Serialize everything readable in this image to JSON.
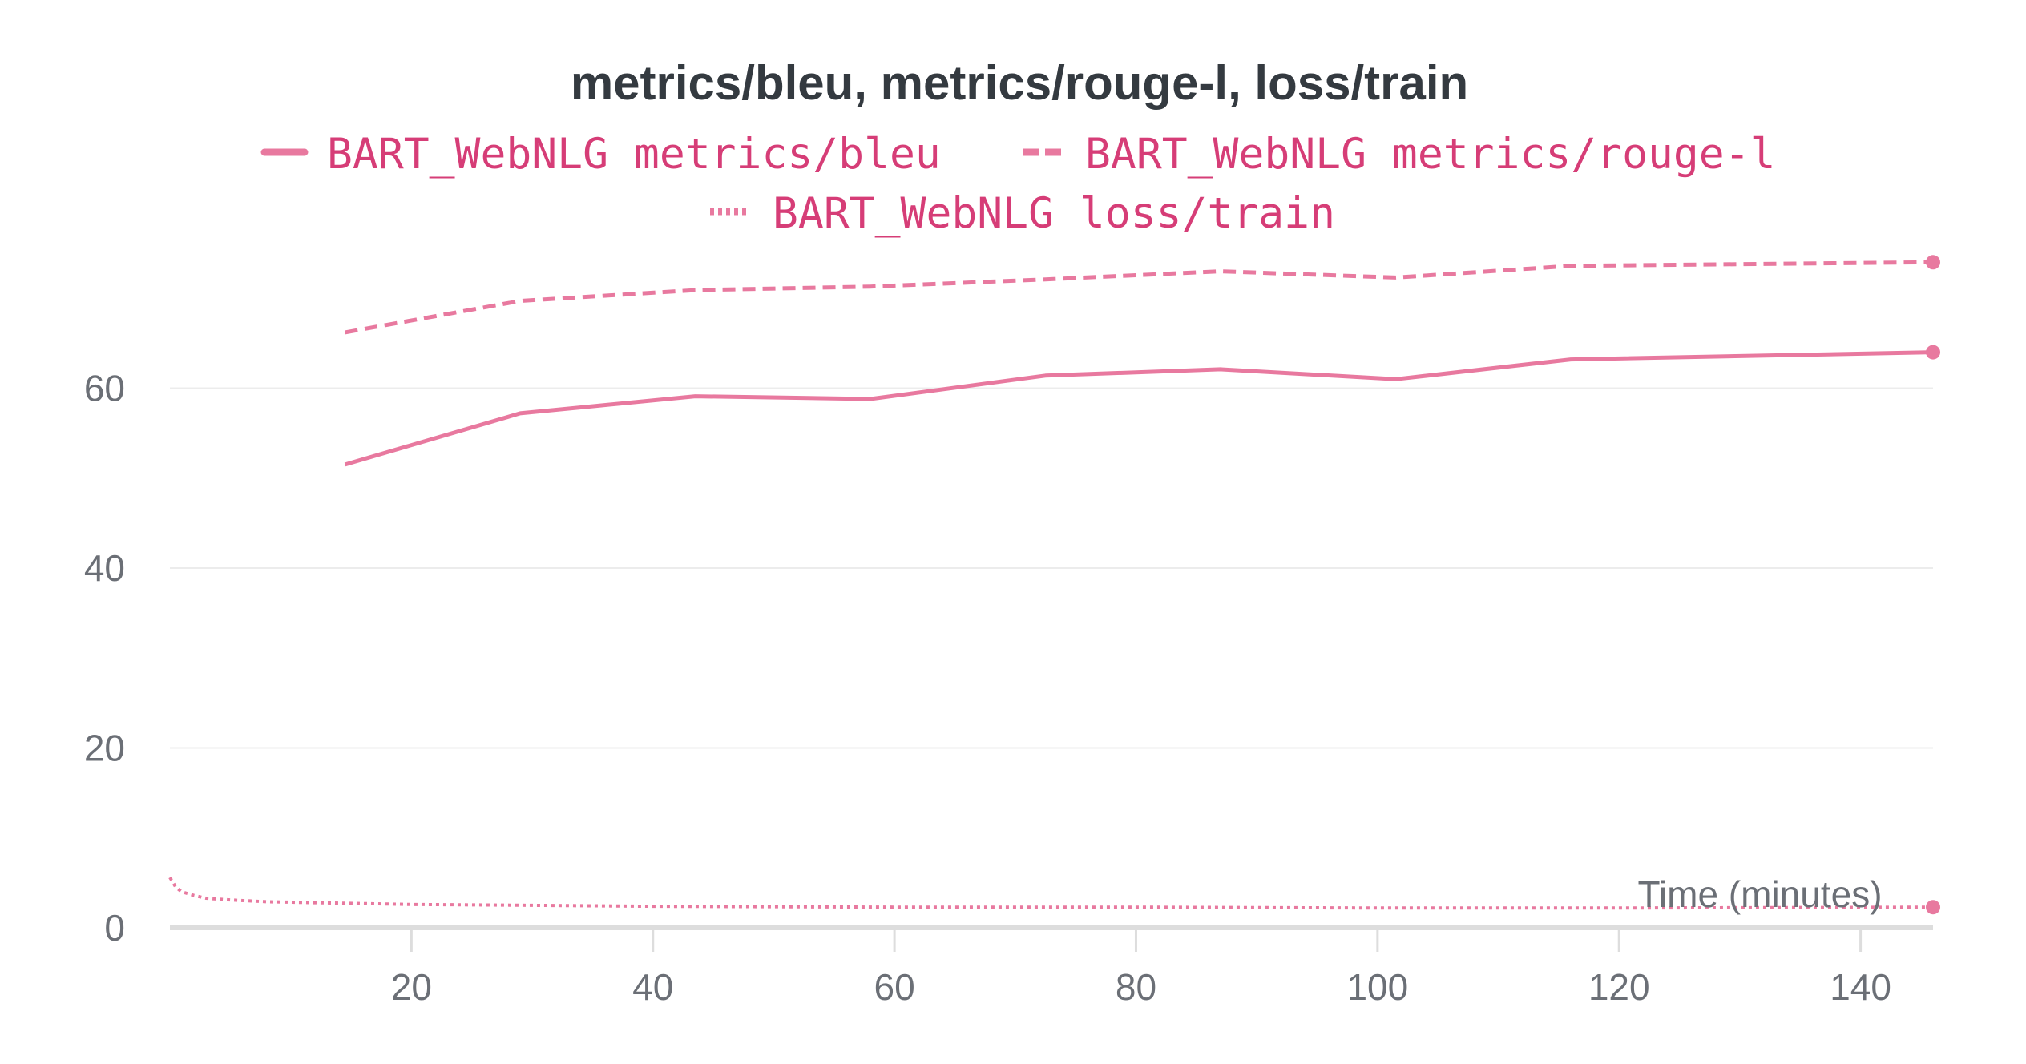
{
  "chart_data": {
    "type": "line",
    "title": "metrics/bleu, metrics/rouge-l, loss/train",
    "xlabel": "Time (minutes)",
    "ylabel": "",
    "xlim": [
      0,
      146
    ],
    "ylim": [
      0,
      80
    ],
    "xticks": [
      20,
      40,
      60,
      80,
      100,
      120,
      140
    ],
    "yticks": [
      0,
      20,
      40,
      60
    ],
    "grid": true,
    "legend_position": "top-center",
    "color": "#e8799f",
    "series": [
      {
        "name": "BART_WebNLG metrics/bleu",
        "style": "solid",
        "x": [
          14.5,
          29,
          43.5,
          58,
          72.5,
          87,
          101.5,
          116,
          146
        ],
        "y": [
          51.5,
          57.2,
          59.1,
          58.8,
          61.4,
          62.1,
          61.0,
          63.2,
          64.0
        ]
      },
      {
        "name": "BART_WebNLG metrics/rouge-l",
        "style": "dashed",
        "x": [
          14.5,
          29,
          43.5,
          58,
          72.5,
          87,
          101.5,
          116,
          146
        ],
        "y": [
          66.2,
          69.7,
          70.9,
          71.3,
          72.1,
          73.0,
          72.3,
          73.6,
          74.0
        ]
      },
      {
        "name": "BART_WebNLG loss/train",
        "style": "dotted",
        "x": [
          0,
          0.5,
          1,
          2,
          3,
          5,
          8,
          12,
          16,
          20,
          30,
          40,
          60,
          80,
          100,
          120,
          146
        ],
        "y": [
          5.6,
          4.5,
          4.0,
          3.6,
          3.3,
          3.1,
          2.9,
          2.8,
          2.7,
          2.6,
          2.5,
          2.4,
          2.3,
          2.3,
          2.2,
          2.2,
          2.3
        ]
      }
    ]
  }
}
